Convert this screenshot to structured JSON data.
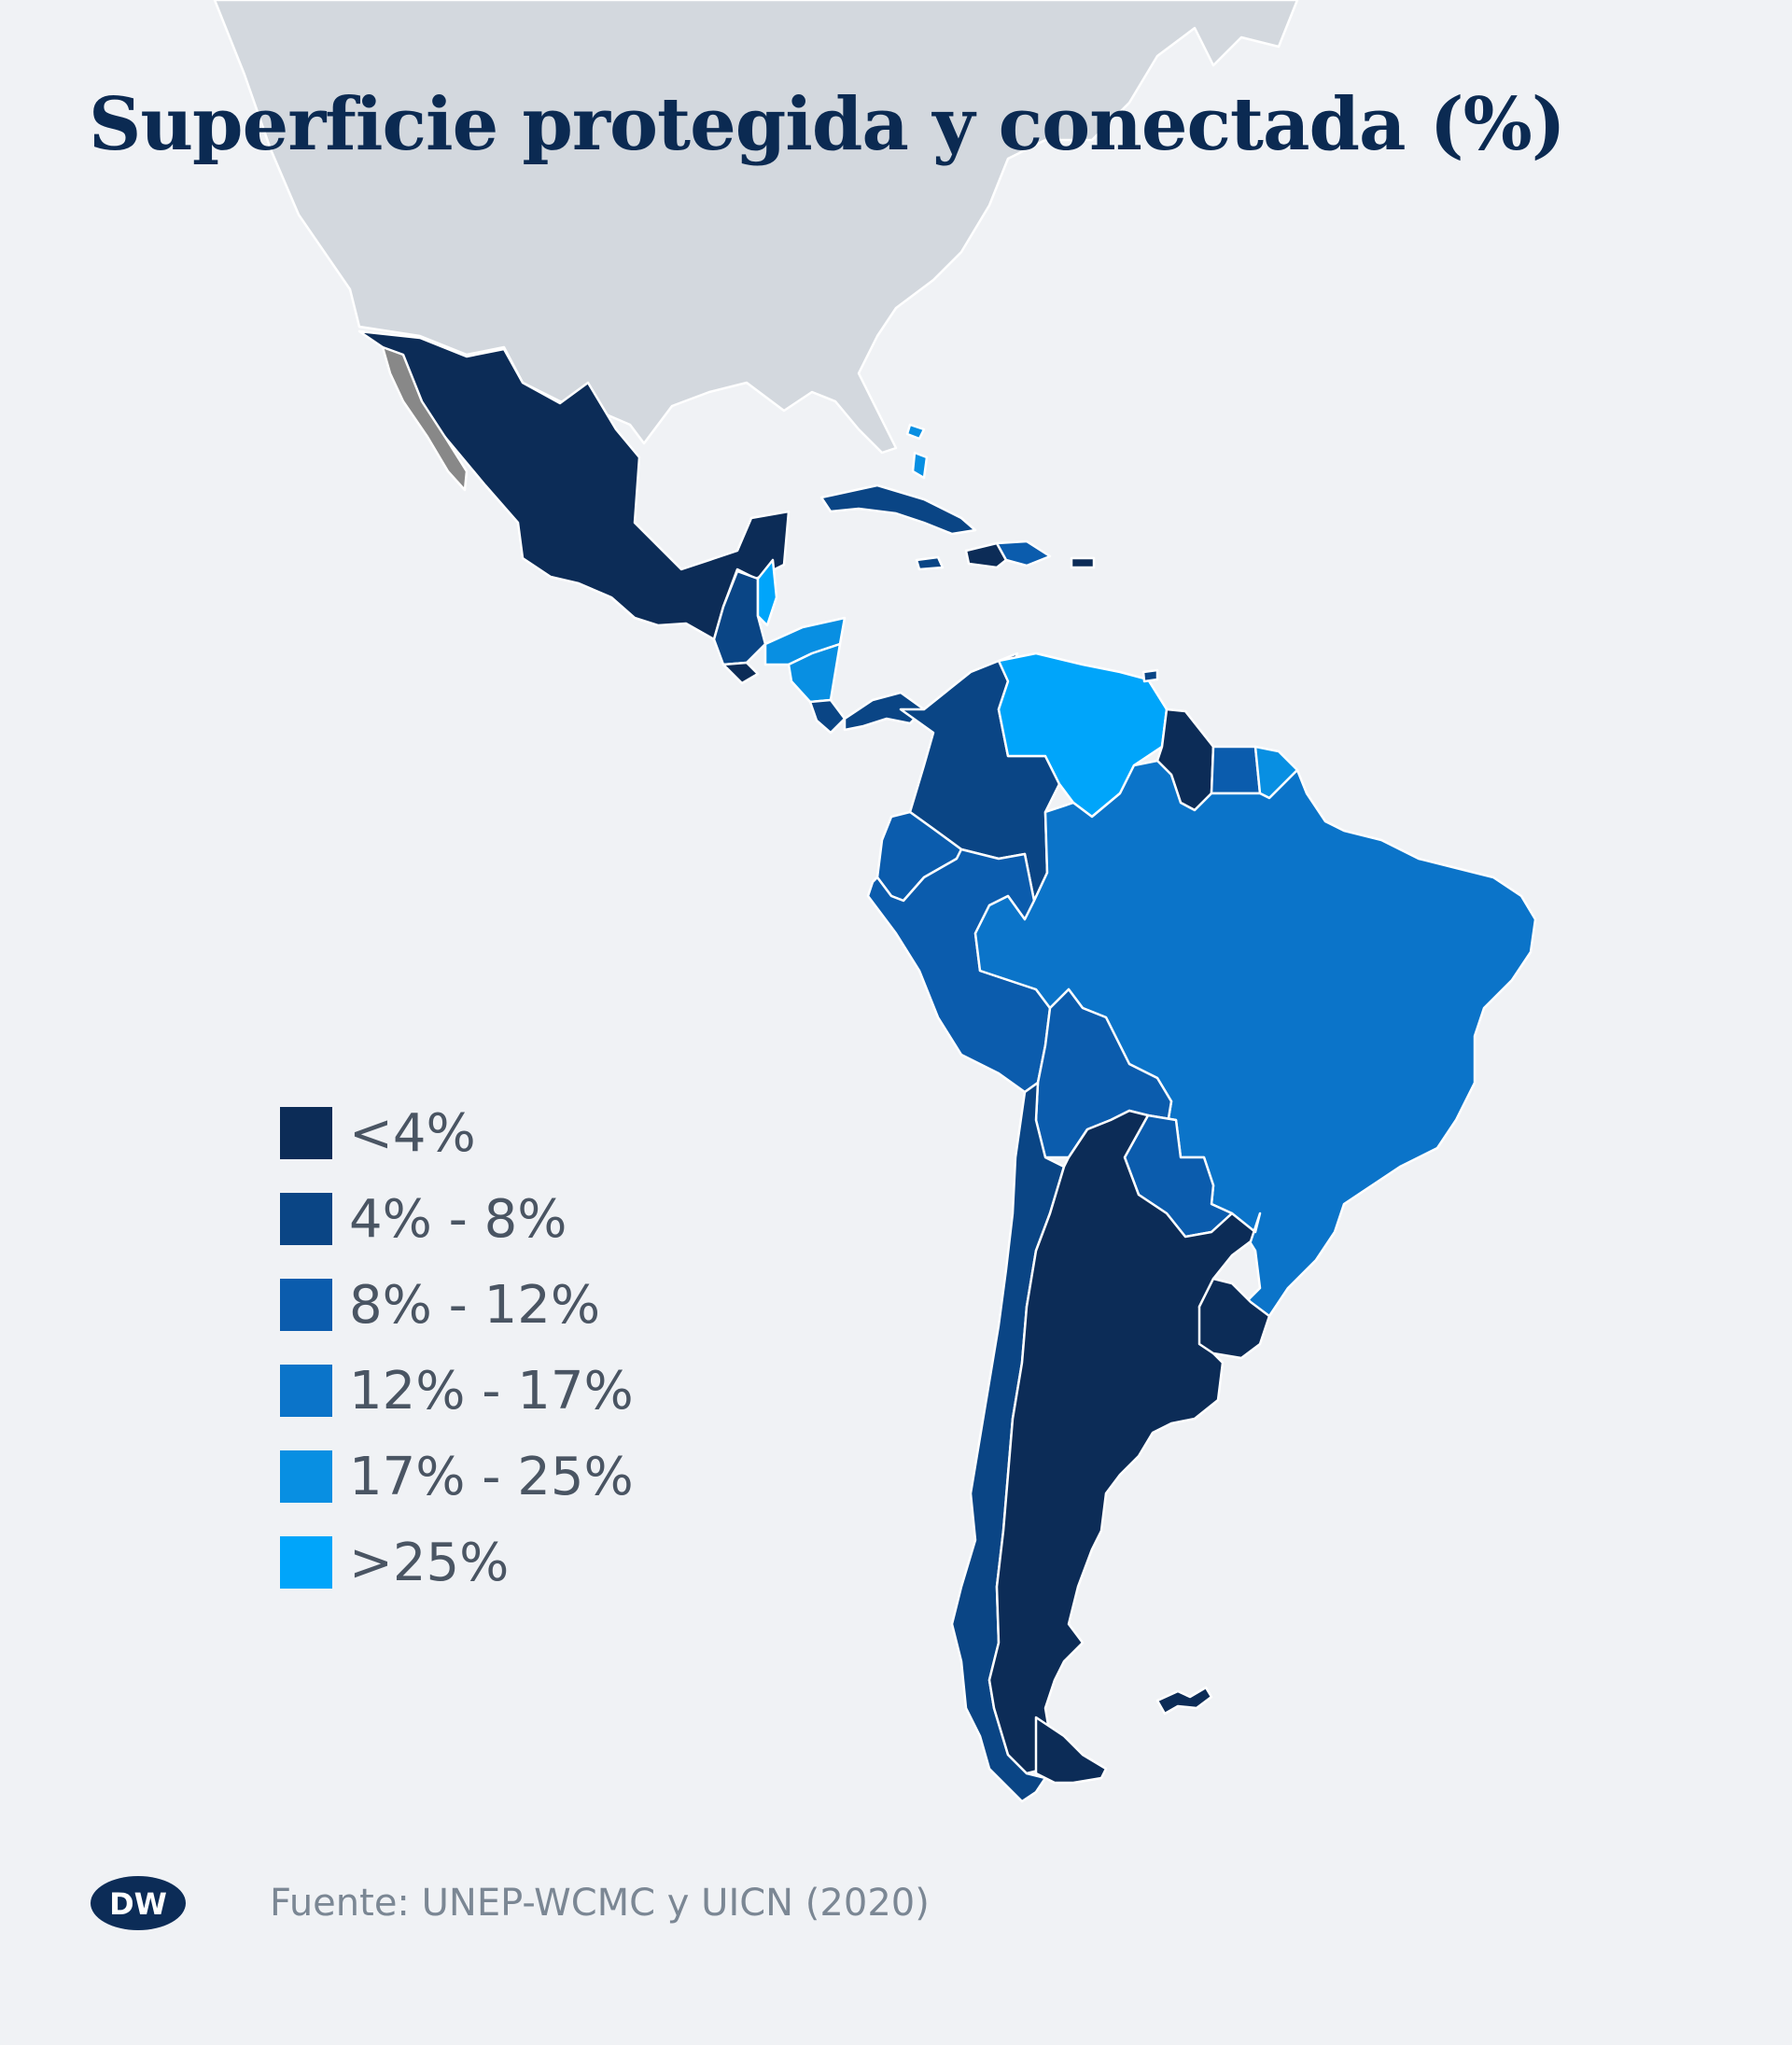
{
  "title": "Superficie protegida y conectada (%)",
  "legend": [
    {
      "label": "<4%",
      "color": "#0c2c57"
    },
    {
      "label": "4% - 8%",
      "color": "#0a4585"
    },
    {
      "label": "8% - 12%",
      "color": "#0b5cad"
    },
    {
      "label": "12% - 17%",
      "color": "#0b74c9"
    },
    {
      "label": "17% - 25%",
      "color": "#088fe2"
    },
    {
      "label": ">25%",
      "color": "#00a5fa"
    }
  ],
  "colors": {
    "background": "#f0f2f5",
    "land_outside": "#d3d8de",
    "border": "#ffffff"
  },
  "regions": [
    {
      "name": "North America",
      "class": "outside"
    },
    {
      "name": "Mexico",
      "class": "<4%"
    },
    {
      "name": "Guatemala",
      "class": "4% - 8%"
    },
    {
      "name": "Belize",
      "class": ">25%"
    },
    {
      "name": "Honduras",
      "class": "17% - 25%"
    },
    {
      "name": "El Salvador",
      "class": "<4%"
    },
    {
      "name": "Nicaragua",
      "class": "17% - 25%"
    },
    {
      "name": "Costa Rica",
      "class": "4% - 8%"
    },
    {
      "name": "Panama",
      "class": "4% - 8%"
    },
    {
      "name": "Cuba",
      "class": "4% - 8%"
    },
    {
      "name": "Bahamas",
      "class": "17% - 25%"
    },
    {
      "name": "Jamaica",
      "class": "4% - 8%"
    },
    {
      "name": "Haiti",
      "class": "<4%"
    },
    {
      "name": "Dominican Republic",
      "class": "8% - 12%"
    },
    {
      "name": "Puerto Rico",
      "class": "<4%"
    },
    {
      "name": "Colombia",
      "class": "4% - 8%"
    },
    {
      "name": "Venezuela",
      "class": ">25%"
    },
    {
      "name": "Trinidad and Tobago",
      "class": "4% - 8%"
    },
    {
      "name": "Guyana",
      "class": "<4%"
    },
    {
      "name": "Suriname",
      "class": "8% - 12%"
    },
    {
      "name": "French Guiana",
      "class": "17% - 25%"
    },
    {
      "name": "Ecuador",
      "class": "8% - 12%"
    },
    {
      "name": "Peru",
      "class": "8% - 12%"
    },
    {
      "name": "Brazil",
      "class": "12% - 17%"
    },
    {
      "name": "Bolivia",
      "class": "8% - 12%"
    },
    {
      "name": "Paraguay",
      "class": "8% - 12%"
    },
    {
      "name": "Chile",
      "class": "4% - 8%"
    },
    {
      "name": "Argentina",
      "class": "<4%"
    },
    {
      "name": "Uruguay",
      "class": "<4%"
    },
    {
      "name": "Falkland Islands",
      "class": "<4%"
    }
  ],
  "source": "Fuente: UNEP-WCMC y UICN (2020)",
  "logo": {
    "text": "DW",
    "name": "dw-logo"
  }
}
